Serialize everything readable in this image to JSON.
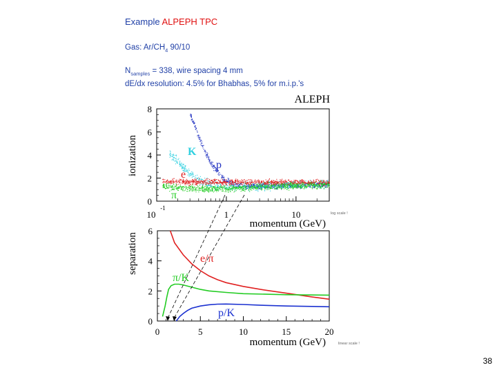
{
  "header": {
    "title_prefix": "Example",
    "title_highlight": "ALPEPH TPC",
    "gas_prefix": "Gas: Ar/CH",
    "gas_sub": "4",
    "gas_suffix": " 90/10",
    "nsamples_N": "N",
    "nsamples_sub": "samples",
    "nsamples_text": " = 338, wire spacing 4 mm",
    "resolution": "dE/dx resolution: 4.5% for Bhabhas, 5% for m.i.p.'s"
  },
  "page_number": "38",
  "colors": {
    "header_text": "#1f3fa6",
    "highlight": "#e01010",
    "electron": "#e02020",
    "pion": "#22cc22",
    "kaon": "#30d0e0",
    "proton": "#2030c0"
  },
  "chart_data": [
    {
      "type": "scatter",
      "brand": "ALEPH",
      "ylabel": "ionization",
      "xlabel": "momentum (GeV)",
      "xscale": "log",
      "xlim": [
        0.1,
        30
      ],
      "ylim": [
        0,
        8
      ],
      "x_tick_labels": [
        "10",
        "-1",
        "1",
        "10"
      ],
      "y_tick_labels": [
        "0",
        "2",
        "4",
        "6",
        "8"
      ],
      "y_ticks": [
        0,
        2,
        4,
        6,
        8
      ],
      "scale_note": "log scale !",
      "particle_labels": [
        {
          "name": "electron",
          "text": "e",
          "color": "#e02020"
        },
        {
          "name": "pion",
          "text": "π",
          "color": "#22cc22"
        },
        {
          "name": "kaon",
          "text": "K",
          "color": "#30d0e0"
        },
        {
          "name": "proton",
          "text": "p",
          "color": "#2030c0"
        }
      ],
      "bands": [
        {
          "name": "proton",
          "color": "#2030c0",
          "points": [
            [
              0.3,
              7.6
            ],
            [
              0.4,
              5.6
            ],
            [
              0.5,
              4.2
            ],
            [
              0.6,
              3.3
            ],
            [
              0.8,
              2.3
            ],
            [
              1.0,
              1.8
            ],
            [
              1.5,
              1.4
            ],
            [
              3,
              1.3
            ],
            [
              10,
              1.4
            ],
            [
              30,
              1.5
            ]
          ]
        },
        {
          "name": "kaon",
          "color": "#30d0e0",
          "points": [
            [
              0.15,
              4.2
            ],
            [
              0.2,
              3.4
            ],
            [
              0.3,
              2.4
            ],
            [
              0.4,
              1.8
            ],
            [
              0.6,
              1.45
            ],
            [
              1.0,
              1.3
            ],
            [
              3,
              1.35
            ],
            [
              10,
              1.45
            ],
            [
              30,
              1.55
            ]
          ]
        },
        {
          "name": "electron",
          "color": "#e02020",
          "points": [
            [
              0.12,
              1.7
            ],
            [
              0.3,
              1.7
            ],
            [
              1,
              1.68
            ],
            [
              3,
              1.66
            ],
            [
              10,
              1.65
            ],
            [
              30,
              1.62
            ]
          ]
        },
        {
          "name": "pion",
          "color": "#22cc22",
          "points": [
            [
              0.12,
              1.35
            ],
            [
              0.3,
              1.12
            ],
            [
              0.6,
              1.08
            ],
            [
              1,
              1.12
            ],
            [
              3,
              1.25
            ],
            [
              10,
              1.38
            ],
            [
              30,
              1.45
            ]
          ]
        }
      ]
    },
    {
      "type": "line",
      "ylabel": "separation",
      "xlabel": "momentum (GeV)",
      "xlim": [
        0,
        20
      ],
      "ylim": [
        0,
        6
      ],
      "x_ticks": [
        0,
        5,
        10,
        15,
        20
      ],
      "x_tick_labels": [
        "0",
        "5",
        "10",
        "15",
        "20"
      ],
      "y_ticks": [
        0,
        2,
        4,
        6
      ],
      "y_tick_labels": [
        "0",
        "2",
        "4",
        "6"
      ],
      "scale_note": "linear scale !",
      "series": [
        {
          "name": "e/π",
          "color": "#e02020",
          "x": [
            1.5,
            2,
            3,
            4,
            5,
            6,
            7,
            8,
            10,
            12,
            15,
            18,
            20
          ],
          "values": [
            6.0,
            5.2,
            4.4,
            3.8,
            3.35,
            3.0,
            2.75,
            2.55,
            2.3,
            2.1,
            1.85,
            1.6,
            1.45
          ]
        },
        {
          "name": "π/K",
          "color": "#22cc22",
          "x": [
            0.6,
            0.9,
            1.1,
            1.3,
            1.6,
            2,
            2.5,
            3,
            4,
            5,
            6,
            8,
            10,
            15,
            20
          ],
          "values": [
            0.3,
            1.0,
            1.6,
            2.1,
            2.35,
            2.45,
            2.45,
            2.4,
            2.25,
            2.1,
            2.0,
            1.9,
            1.82,
            1.75,
            1.72
          ]
        },
        {
          "name": "p/K",
          "color": "#1a30d0",
          "x": [
            2.2,
            2.6,
            3,
            3.5,
            4,
            5,
            6,
            7,
            8,
            10,
            12,
            15,
            18,
            20
          ],
          "values": [
            0.0,
            0.3,
            0.5,
            0.7,
            0.85,
            1.0,
            1.08,
            1.12,
            1.13,
            1.1,
            1.05,
            1.0,
            0.97,
            0.95
          ]
        }
      ]
    }
  ]
}
